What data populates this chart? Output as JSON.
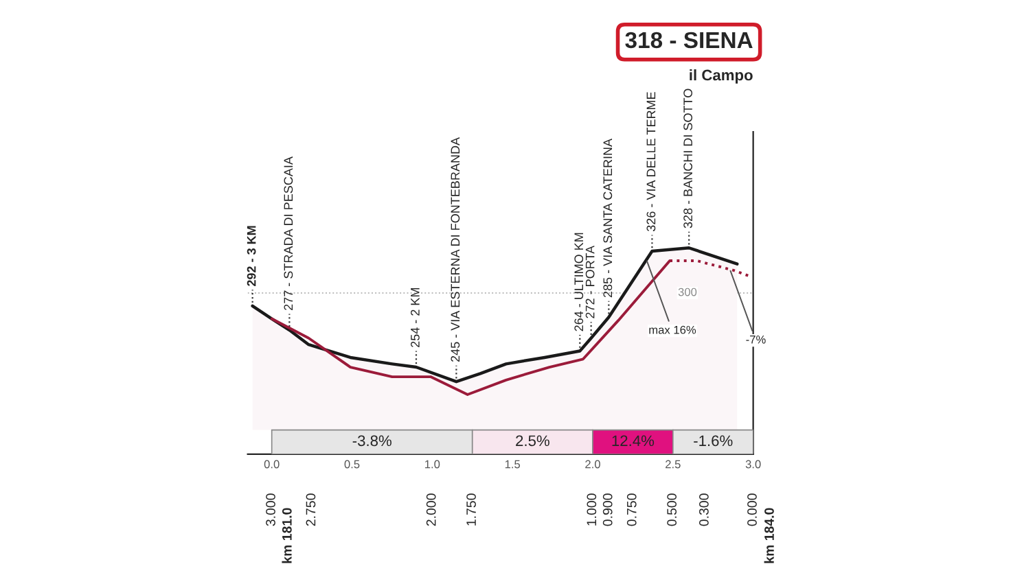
{
  "chart_data": {
    "type": "area",
    "title": "318 - SIENA",
    "subtitle": "il Campo",
    "xlim": [
      -0.15,
      3.0
    ],
    "ylim": [
      200,
      400
    ],
    "ref_lines": [
      {
        "axis": "y",
        "value": 300,
        "label": "300",
        "color": "#bbbbbb",
        "line_style": "dotted"
      }
    ],
    "xticks": [
      {
        "value": 0,
        "label": "0.0"
      },
      0.5,
      {
        "value": 1,
        "label": "1.0"
      },
      1.5,
      {
        "value": 2,
        "label": "2.0"
      },
      2.5,
      {
        "value": 3,
        "label": "3.0"
      }
    ],
    "x2lim": [
      3.15,
      0
    ],
    "x2ticks": [
      {
        "value": 3,
        "label": "3.000"
      },
      {
        "value": 2.75,
        "label": "2.750"
      },
      {
        "value": 2,
        "label": "2.000"
      },
      {
        "value": 1.75,
        "label": "1.750"
      },
      {
        "value": 1,
        "label": "1.000"
      },
      {
        "value": 0.9,
        "label": "0.900"
      },
      {
        "value": 0.75,
        "label": "0.750"
      },
      {
        "value": 0.5,
        "label": "0.500"
      },
      {
        "value": 0.3,
        "label": "0.300"
      },
      {
        "value": 0,
        "label": "0.000"
      }
    ],
    "series": [
      {
        "color": "#1a1a1a",
        "x": [
          -0.12,
          0,
          0.11,
          0.23,
          0.49,
          0.75,
          0.9,
          1.15,
          1.3,
          1.46,
          1.7,
          1.92,
          1.99,
          2.1,
          2.37,
          2.6,
          2.9
        ],
        "values": [
          292,
          284,
          277,
          268,
          260,
          256,
          254,
          245,
          250,
          256,
          260,
          264,
          272,
          285,
          326,
          328,
          318
        ],
        "value_labels": [
          "292 - 3 KM",
          null,
          "277 - STRADA DI PESCAIA",
          null,
          null,
          null,
          "254 - 2 KM",
          "245 - VIA ESTERNA DI FONTEBRANDA",
          null,
          null,
          null,
          "264 - ULTIMO KM",
          "272 - PORTA",
          "285 - VIA SANTA CATERINA",
          "326 - VIA DELLE TERME",
          "328 - BANCHI DI SOTTO",
          null
        ]
      },
      {
        "type": "line",
        "color": "#9b1b3a",
        "line_style": "solid",
        "x": [
          0,
          0.23,
          0.49,
          0.75,
          0.99,
          1.22,
          1.46,
          1.73,
          1.94,
          2.16,
          2.48
        ],
        "values": [
          284,
          272,
          254,
          248,
          248,
          237,
          246,
          254,
          259,
          283,
          320
        ]
      },
      {
        "type": "line",
        "color": "#9b1b3a",
        "line_style": "dotted",
        "x": [
          2.48,
          2.65,
          2.88,
          2.99
        ],
        "values": [
          320,
          320,
          314,
          310
        ]
      }
    ],
    "bands": [
      {
        "axis": "x",
        "from": 0,
        "to": 1.25,
        "label": "-3.8%",
        "color": "#e6e6e6"
      },
      {
        "axis": "x",
        "from": 1.25,
        "to": 2.0,
        "label": "2.5%",
        "color": "#f8e6ee"
      },
      {
        "axis": "x",
        "from": 2.0,
        "to": 2.5,
        "label": "12.4%",
        "color": "#e0117f"
      },
      {
        "axis": "x",
        "from": 2.5,
        "to": 3.0,
        "label": "-1.6%",
        "color": "#e6e6e6"
      }
    ],
    "annotations": [
      {
        "text": "max 16%",
        "x": 2.33,
        "y": 322
      },
      {
        "text": "-7%",
        "x": 2.85,
        "y": 316
      },
      "km 181.0",
      "km 184.0"
    ]
  }
}
